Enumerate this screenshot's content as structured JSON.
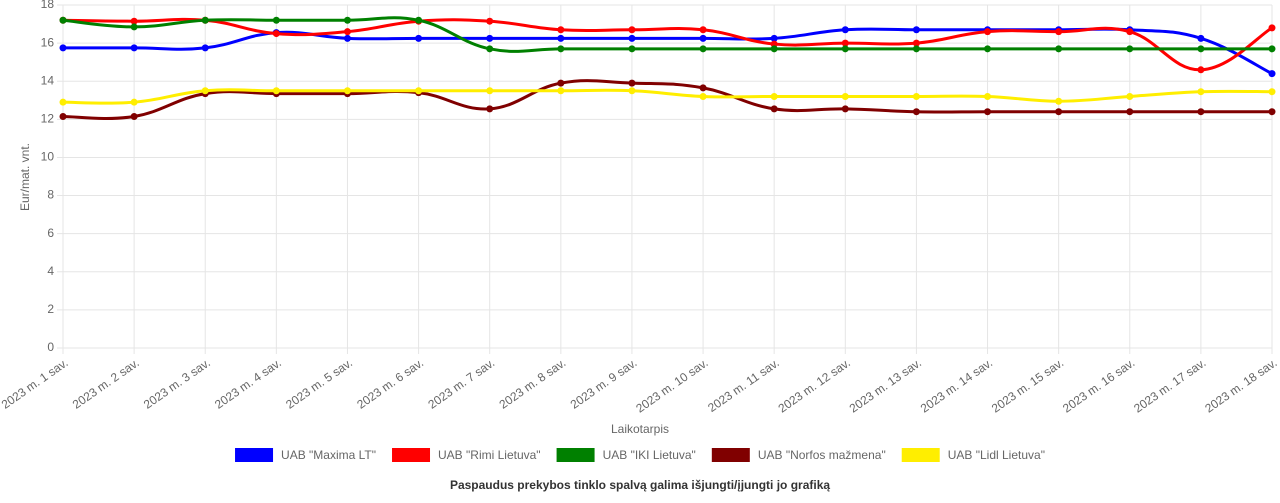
{
  "chart_data": {
    "type": "line",
    "x_label": "Laikotarpis",
    "y_label": "Eur/mat. vnt.",
    "footnote": "Paspaudus prekybos tinklo spalvą galima išjungti/įjungti jo grafiką",
    "categories": [
      "2023 m. 1 sav.",
      "2023 m. 2 sav.",
      "2023 m. 3 sav.",
      "2023 m. 4 sav.",
      "2023 m. 5 sav.",
      "2023 m. 6 sav.",
      "2023 m. 7 sav.",
      "2023 m. 8 sav.",
      "2023 m. 9 sav.",
      "2023 m. 10 sav.",
      "2023 m. 11 sav.",
      "2023 m. 12 sav.",
      "2023 m. 13 sav.",
      "2023 m. 14 sav.",
      "2023 m. 15 sav.",
      "2023 m. 16 sav.",
      "2023 m. 17 sav.",
      "2023 m. 18 sav."
    ],
    "series": [
      {
        "name": "UAB \"Maxima LT\"",
        "color": "#0000ff",
        "values": [
          15.75,
          15.75,
          15.75,
          16.55,
          16.25,
          16.25,
          16.25,
          16.25,
          16.25,
          16.25,
          16.25,
          16.7,
          16.7,
          16.7,
          16.7,
          16.7,
          16.25,
          14.4
        ]
      },
      {
        "name": "UAB \"Rimi Lietuva\"",
        "color": "#ff0000",
        "values": [
          17.2,
          17.15,
          17.2,
          16.5,
          16.6,
          17.15,
          17.15,
          16.7,
          16.7,
          16.7,
          15.95,
          16.0,
          16.0,
          16.6,
          16.6,
          16.6,
          14.6,
          16.8
        ]
      },
      {
        "name": "UAB \"IKI Lietuva\"",
        "color": "#008000",
        "values": [
          17.2,
          16.85,
          17.2,
          17.2,
          17.2,
          17.2,
          15.7,
          15.7,
          15.7,
          15.7,
          15.7,
          15.7,
          15.7,
          15.7,
          15.7,
          15.7,
          15.7,
          15.7
        ]
      },
      {
        "name": "UAB \"Norfos mažmena\"",
        "color": "#800000",
        "values": [
          12.15,
          12.15,
          13.35,
          13.35,
          13.35,
          13.4,
          12.55,
          13.9,
          13.9,
          13.65,
          12.55,
          12.55,
          12.4,
          12.4,
          12.4,
          12.4,
          12.4,
          12.4
        ]
      },
      {
        "name": "UAB \"Lidl Lietuva\"",
        "color": "#ffee00",
        "values": [
          12.9,
          12.9,
          13.5,
          13.5,
          13.5,
          13.5,
          13.5,
          13.5,
          13.5,
          13.2,
          13.2,
          13.2,
          13.2,
          13.2,
          12.95,
          13.2,
          13.45,
          13.45
        ]
      }
    ],
    "ylim": [
      0,
      18
    ],
    "yticks": [
      0,
      2,
      4,
      6,
      8,
      10,
      12,
      14,
      16,
      18
    ],
    "grid": true
  }
}
